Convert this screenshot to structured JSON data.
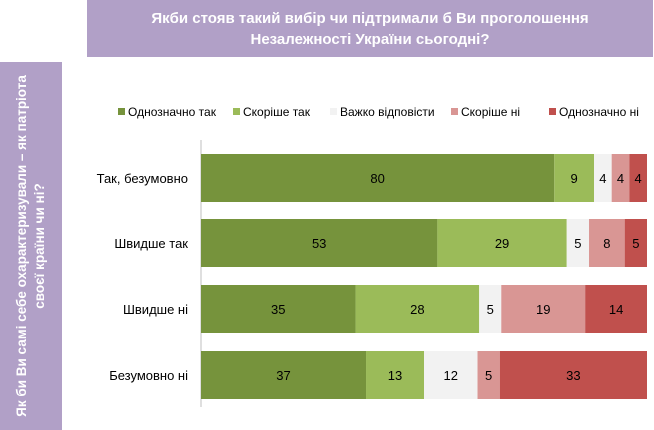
{
  "title_line1": "Якби стояв такий вибір чи підтримали б Ви проголошення",
  "title_line2": "Незалежності України сьогодні?",
  "side_label": "Як би Ви самі себе охарактеризували – як патріота своєї країни чи ні?",
  "colors": {
    "header_bg": "#b1a0c7",
    "series": [
      "#76933c",
      "#9bbb59",
      "#f2f2f2",
      "#d99694",
      "#c0504d"
    ]
  },
  "chart_data": {
    "type": "bar",
    "orientation": "horizontal",
    "stacked": true,
    "legend_position": "top",
    "grid": false,
    "xlim": [
      0,
      100
    ],
    "categories": [
      "Так, безумовно",
      "Швидше так",
      "Швидше ні",
      "Безумовно ні"
    ],
    "series": [
      {
        "name": "Однозначно так",
        "values": [
          80,
          53,
          35,
          37
        ]
      },
      {
        "name": "Скоріше так",
        "values": [
          9,
          29,
          28,
          13
        ]
      },
      {
        "name": "Важко відповісти",
        "values": [
          4,
          5,
          5,
          12
        ]
      },
      {
        "name": "Скоріше ні",
        "values": [
          4,
          8,
          19,
          5
        ]
      },
      {
        "name": "Однозначно ні",
        "values": [
          4,
          5,
          14,
          33
        ]
      }
    ]
  }
}
